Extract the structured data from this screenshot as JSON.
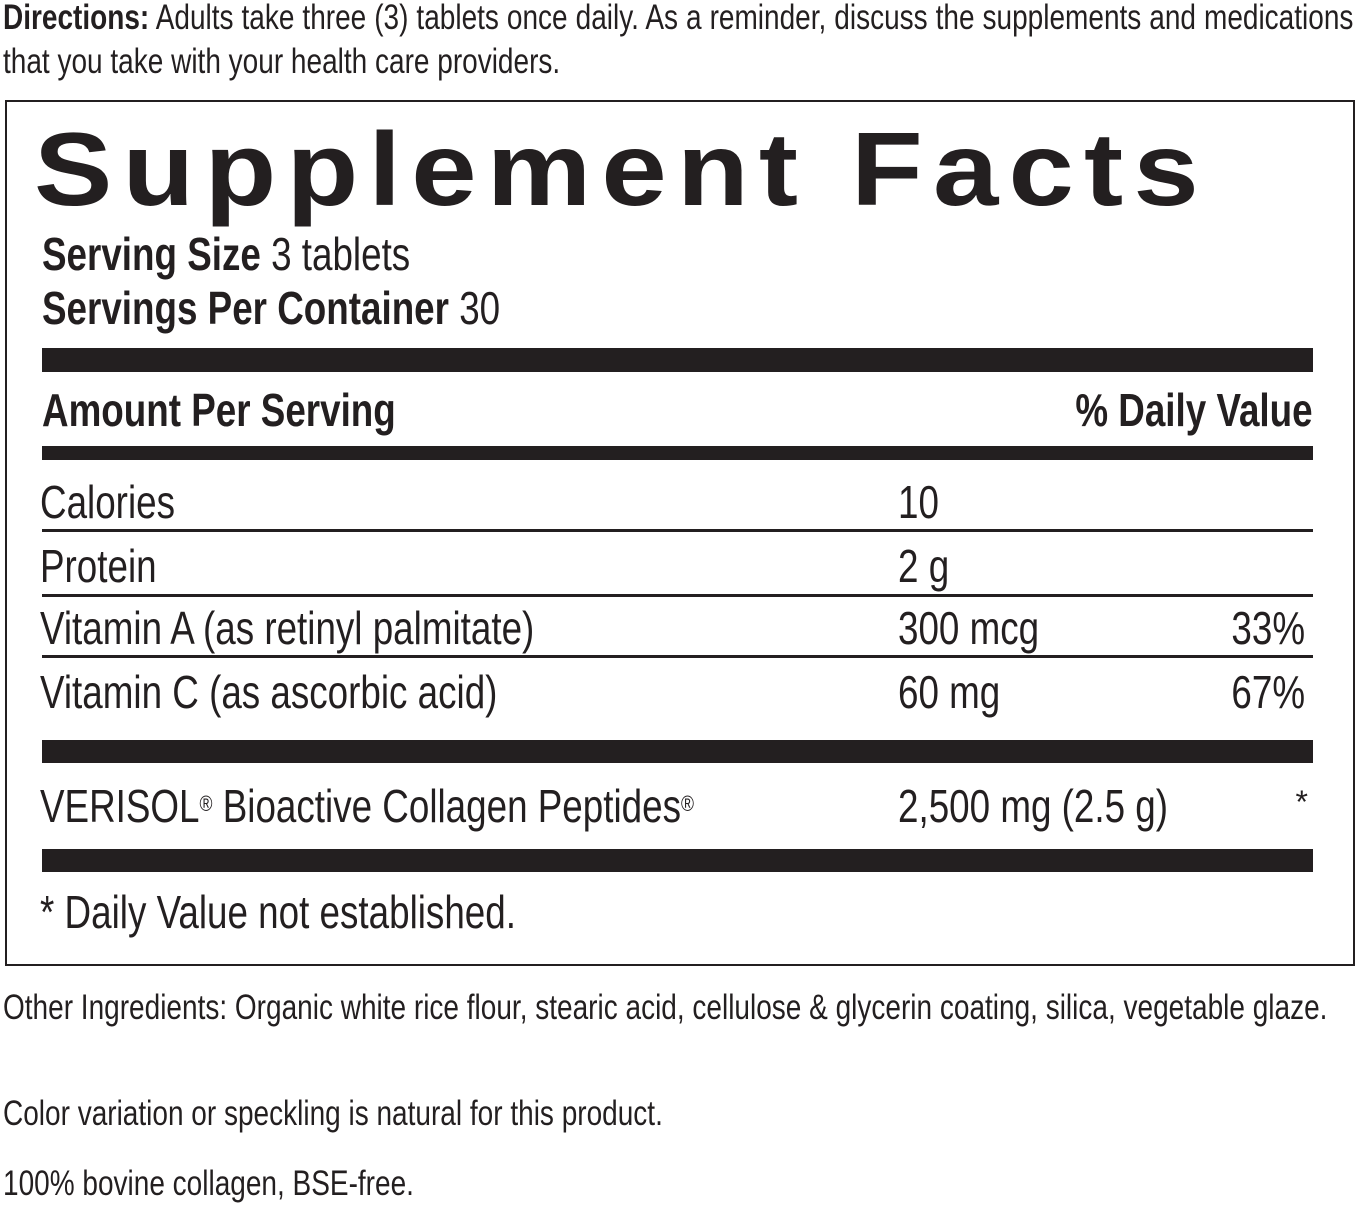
{
  "directions": {
    "label": "Directions:",
    "text": " Adults take three (3) tablets once daily. As a reminder, discuss the supplements and medications that you take with your health care providers."
  },
  "facts": {
    "title": "Supplement Facts",
    "serving_size_label": "Serving Size",
    "serving_size_value": " 3 tablets",
    "servings_label": "Servings Per Container",
    "servings_value": " 30",
    "amount_header": "Amount Per Serving",
    "dv_header": "% Daily Value",
    "rows": [
      {
        "name": "Calories",
        "amount": "10",
        "dv": ""
      },
      {
        "name": "Protein",
        "amount": "2 g",
        "dv": ""
      },
      {
        "name": "Vitamin A (as retinyl palmitate)",
        "amount": "300 mcg",
        "dv": "33%"
      },
      {
        "name": "Vitamin C (as ascorbic acid)",
        "amount": "60 mg",
        "dv": "67%"
      }
    ],
    "verisol": {
      "name_a": "VERISOL",
      "reg": "®",
      "name_b": " Bioactive Collagen Peptides",
      "amount": "2,500 mg (2.5 g)",
      "dv": "*"
    },
    "footnote": "* Daily Value not established."
  },
  "other_ingredients": "Other Ingredients: Organic white rice flour, stearic acid, cellulose & glycerin coating, silica, vegetable glaze.",
  "color_note": "Color variation or speckling is natural for this product.",
  "bovine_note": "100% bovine collagen, BSE-free."
}
